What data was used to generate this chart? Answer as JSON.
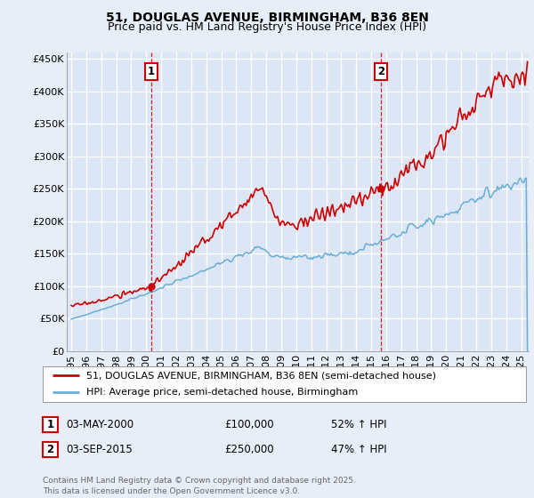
{
  "title": "51, DOUGLAS AVENUE, BIRMINGHAM, B36 8EN",
  "subtitle": "Price paid vs. HM Land Registry's House Price Index (HPI)",
  "bg_color": "#e8eef8",
  "plot_bg_color": "#dce6f5",
  "grid_color": "#ffffff",
  "red_color": "#cc0000",
  "blue_color": "#6aaed6",
  "ylim": [
    0,
    460000
  ],
  "yticks": [
    0,
    50000,
    100000,
    150000,
    200000,
    250000,
    300000,
    350000,
    400000,
    450000
  ],
  "ytick_labels": [
    "£0",
    "£50K",
    "£100K",
    "£150K",
    "£200K",
    "£250K",
    "£300K",
    "£350K",
    "£400K",
    "£450K"
  ],
  "xlim_start": 1994.7,
  "xlim_end": 2025.5,
  "xticks": [
    1995,
    1996,
    1997,
    1998,
    1999,
    2000,
    2001,
    2002,
    2003,
    2004,
    2005,
    2006,
    2007,
    2008,
    2009,
    2010,
    2011,
    2012,
    2013,
    2014,
    2015,
    2016,
    2017,
    2018,
    2019,
    2020,
    2021,
    2022,
    2023,
    2024,
    2025
  ],
  "sale1_x": 2000.34,
  "sale1_y": 100000,
  "sale2_x": 2015.67,
  "sale2_y": 250000,
  "legend_line1": "51, DOUGLAS AVENUE, BIRMINGHAM, B36 8EN (semi-detached house)",
  "legend_line2": "HPI: Average price, semi-detached house, Birmingham",
  "annotation1_label": "1",
  "annotation1_date": "03-MAY-2000",
  "annotation1_price": "£100,000",
  "annotation1_hpi": "52% ↑ HPI",
  "annotation2_label": "2",
  "annotation2_date": "03-SEP-2015",
  "annotation2_price": "£250,000",
  "annotation2_hpi": "47% ↑ HPI",
  "footer": "Contains HM Land Registry data © Crown copyright and database right 2025.\nThis data is licensed under the Open Government Licence v3.0.",
  "title_fontsize": 10,
  "subtitle_fontsize": 9,
  "tick_fontsize": 8,
  "legend_fontsize": 8,
  "footer_fontsize": 6.5
}
